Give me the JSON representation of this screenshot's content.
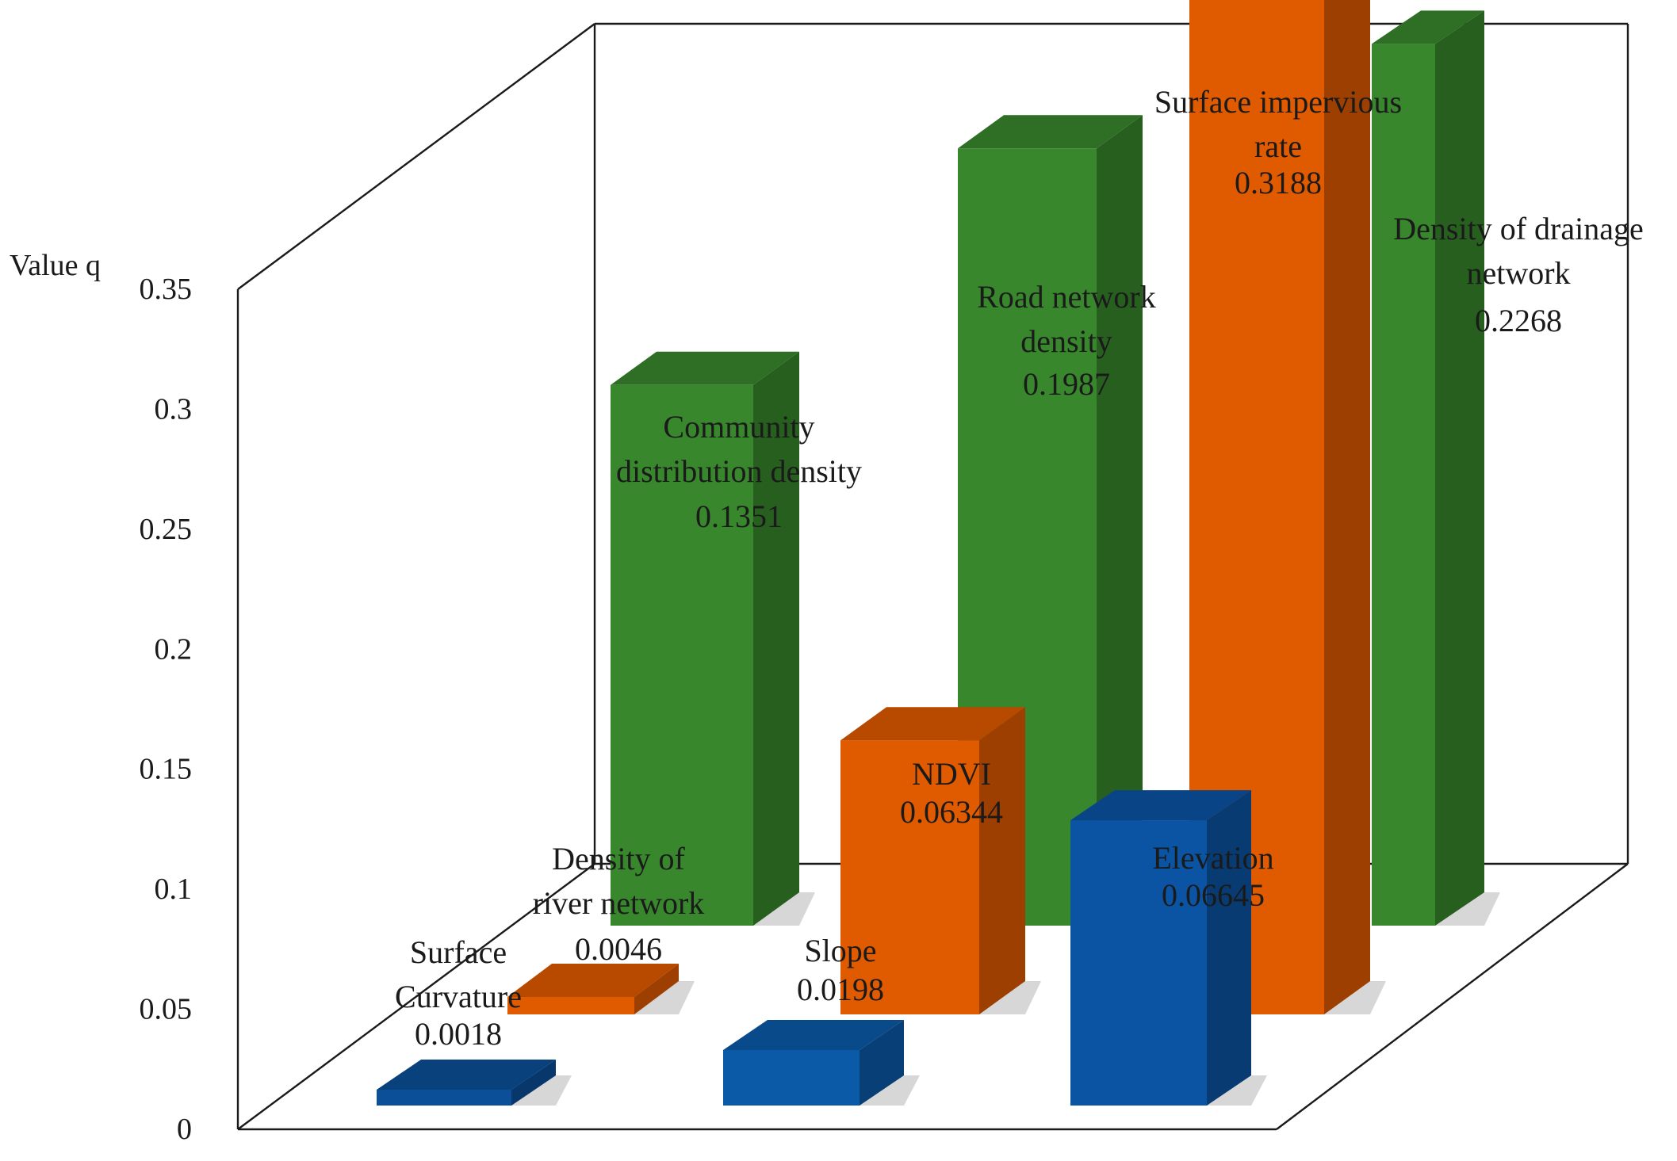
{
  "chart_data": {
    "type": "bar",
    "ylabel": "Value q",
    "ylim": [
      0,
      0.35
    ],
    "yticks": [
      "0",
      "0.05",
      "0.1",
      "0.15",
      "0.2",
      "0.25",
      "0.3",
      "0.35"
    ],
    "grid": false,
    "legend": "none",
    "bars": [
      {
        "label_lines": [
          "Surface",
          "Curvature"
        ],
        "value_label": "0.0018",
        "value": 0.0018,
        "row": "front",
        "color": "#0b4f99"
      },
      {
        "label_lines": [
          "Slope"
        ],
        "value_label": "0.0198",
        "value": 0.0198,
        "row": "front",
        "color": "#0b5aa8"
      },
      {
        "label_lines": [
          "Elevation"
        ],
        "value_label": "0.06645",
        "value": 0.06645,
        "row": "front",
        "color": "#0b54a3"
      },
      {
        "label_lines": [
          "Density of",
          "river network"
        ],
        "value_label": "0.0046",
        "value": 0.0046,
        "row": "middle",
        "color": "#e05a00"
      },
      {
        "label_lines": [
          "NDVI"
        ],
        "value_label": "0.06344",
        "value": 0.06344,
        "row": "middle",
        "color": "#e05a00"
      },
      {
        "label_lines": [
          "Surface  impervious",
          "rate"
        ],
        "value_label": "0.3188",
        "value": 0.3188,
        "row": "middle",
        "color": "#e05a00"
      },
      {
        "label_lines": [
          "Community",
          "distribution density"
        ],
        "value_label": "0.1351",
        "value": 0.1351,
        "row": "back",
        "color": "#38872d"
      },
      {
        "label_lines": [
          "Road  network",
          "density"
        ],
        "value_label": "0.1987",
        "value": 0.1987,
        "row": "back",
        "color": "#38872d"
      },
      {
        "label_lines": [
          "Density of drainage",
          "network"
        ],
        "value_label": "0.2268",
        "value": 0.2268,
        "row": "back",
        "color": "#38872d"
      }
    ]
  }
}
